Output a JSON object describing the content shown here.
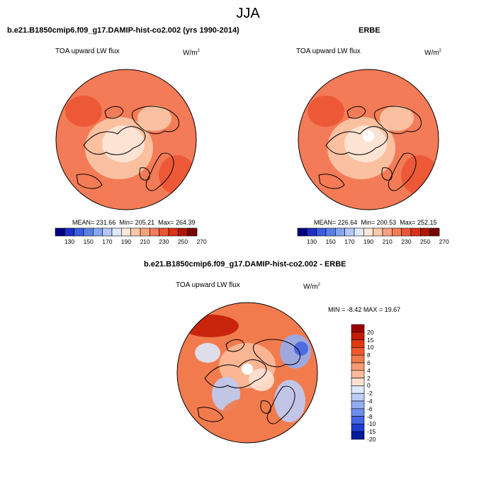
{
  "title": "JJA",
  "panels": [
    {
      "subtitle": "b.e21.B1850cmip6.f09_g17.DAMIP-hist-co2.002 (yrs 1990-2014)",
      "variable": "TOA upward LW flux",
      "units": "W/m",
      "units_sup": "2",
      "mean_label": "MEAN=",
      "mean": "231.66",
      "min_label": "Min=",
      "min": "205.21",
      "max_label": "Max=",
      "max": "264.39",
      "colorbar_ticks": [
        "130",
        "150",
        "170",
        "190",
        "210",
        "230",
        "250",
        "270"
      ]
    },
    {
      "subtitle": "ERBE",
      "variable": "TOA upward LW flux",
      "units": "W/m",
      "units_sup": "2",
      "mean_label": "MEAN=",
      "mean": "226.64",
      "min_label": "Min=",
      "min": "200.53",
      "max_label": "Max=",
      "max": "252.15",
      "colorbar_ticks": [
        "130",
        "150",
        "170",
        "190",
        "210",
        "230",
        "250",
        "270"
      ]
    }
  ],
  "diff_panel": {
    "subtitle": "b.e21.B1850cmip6.f09_g17.DAMIP-hist-co2.002 - ERBE",
    "variable": "TOA upward LW flux",
    "units": "W/m",
    "units_sup": "2",
    "min_label": "MIN =",
    "min": "-8.42",
    "max_label": "MAX =",
    "max": "19.67",
    "colorbar_ticks": [
      "20",
      "15",
      "10",
      "8",
      "6",
      "4",
      "2",
      "0",
      "-2",
      "-4",
      "-6",
      "-8",
      "-10",
      "-15",
      "-20"
    ]
  },
  "colors": {
    "abs_scale": [
      "#00007f",
      "#1c2fc6",
      "#3a5de0",
      "#5b80ea",
      "#87a6f2",
      "#b4c8f6",
      "#dfe8fb",
      "#fde7d8",
      "#fbc8a8",
      "#f8a27d",
      "#f47b57",
      "#ec5534",
      "#d93217",
      "#b01806",
      "#7a0000"
    ],
    "diff_scale": [
      "#9b0000",
      "#c41c06",
      "#e23a10",
      "#ef5a2c",
      "#f27b4e",
      "#f69b73",
      "#f9bb9c",
      "#fde1d0",
      "#dde8fb",
      "#bccdf6",
      "#95adf0",
      "#6d8ceb",
      "#4565e2",
      "#1f3cd2",
      "#001a9e"
    ]
  }
}
